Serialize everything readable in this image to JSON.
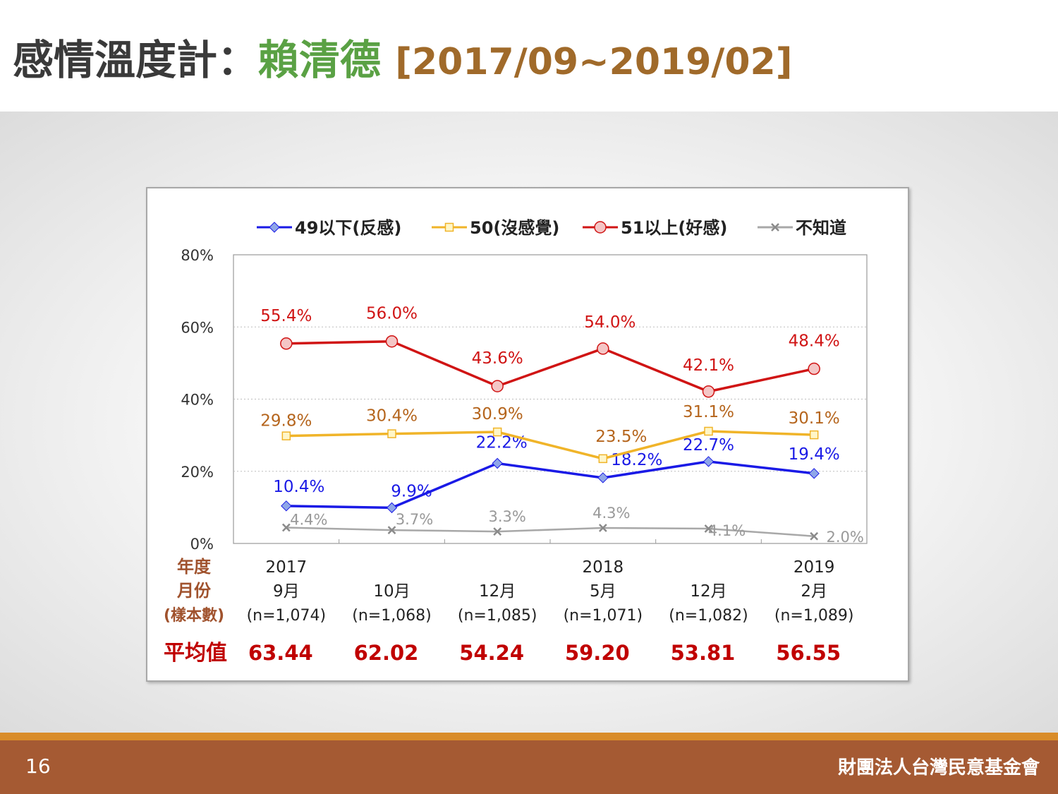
{
  "title": {
    "prefix": "感情溫度計：",
    "name": "賴清德",
    "range": "[2017/09~2019/02]"
  },
  "footer": {
    "page_number": "16",
    "organization": "財團法人台灣民意基金會"
  },
  "chart_data": {
    "type": "line",
    "ylim": [
      0,
      80
    ],
    "y_ticks": [
      "0%",
      "20%",
      "40%",
      "60%",
      "80%"
    ],
    "grid": "horizontal dotted",
    "legend_position": "top",
    "row_labels": {
      "year": "年度",
      "month": "月份",
      "sample": "(樣本數)",
      "average": "平均值"
    },
    "categories": [
      {
        "year": "2017",
        "month": "9月",
        "sample": "(n=1,074)",
        "average": "63.44"
      },
      {
        "year": "",
        "month": "10月",
        "sample": "(n=1,068)",
        "average": "62.02"
      },
      {
        "year": "",
        "month": "12月",
        "sample": "(n=1,085)",
        "average": "54.24"
      },
      {
        "year": "2018",
        "month": "5月",
        "sample": "(n=1,071)",
        "average": "59.20"
      },
      {
        "year": "",
        "month": "12月",
        "sample": "(n=1,082)",
        "average": "53.81"
      },
      {
        "year": "2019",
        "month": "2月",
        "sample": "(n=1,089)",
        "average": "56.55"
      }
    ],
    "series": [
      {
        "name": "49以下(反感)",
        "color": "#1a1ae6",
        "marker": "diamond",
        "values": [
          10.4,
          9.9,
          22.2,
          18.2,
          22.7,
          19.4
        ],
        "labels": [
          "10.4%",
          "9.9%",
          "22.2%",
          "18.2%",
          "22.7%",
          "19.4%"
        ]
      },
      {
        "name": "50(沒感覺)",
        "color": "#f0b429",
        "marker": "square",
        "values": [
          29.8,
          30.4,
          30.9,
          23.5,
          31.1,
          30.1
        ],
        "labels": [
          "29.8%",
          "30.4%",
          "30.9%",
          "23.5%",
          "31.1%",
          "30.1%"
        ]
      },
      {
        "name": "51以上(好感)",
        "color": "#d01414",
        "marker": "circle",
        "values": [
          55.4,
          56.0,
          43.6,
          54.0,
          42.1,
          48.4
        ],
        "labels": [
          "55.4%",
          "56.0%",
          "43.6%",
          "54.0%",
          "42.1%",
          "48.4%"
        ]
      },
      {
        "name": "不知道",
        "color": "#a8a8a8",
        "marker": "x",
        "values": [
          4.4,
          3.7,
          3.3,
          4.3,
          4.1,
          2.0
        ],
        "labels": [
          "4.4%",
          "3.7%",
          "3.3%",
          "4.3%",
          "4.1%",
          "2.0%"
        ]
      }
    ],
    "colors": {
      "row_label": "#a0522d",
      "average": "#c00000",
      "label_blue": "#1a1ae6",
      "label_orange": "#b5651d",
      "label_red": "#d01414",
      "label_gray": "#999999"
    }
  }
}
